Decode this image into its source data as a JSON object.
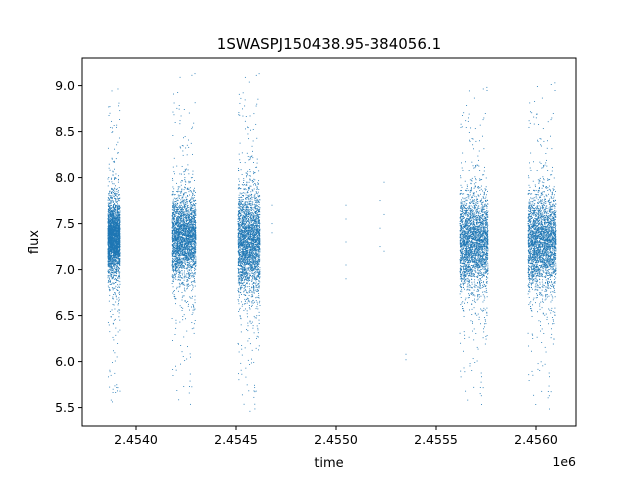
{
  "chart_data": {
    "type": "scatter",
    "title": "1SWASPJ150438.95-384056.1",
    "xlabel": "time",
    "ylabel": "flux",
    "x_offset_label": "1e6",
    "xlim": [
      2.45373,
      2.4562
    ],
    "ylim": [
      5.3,
      9.3
    ],
    "x_ticks": [
      2.454,
      2.4545,
      2.455,
      2.4555,
      2.456
    ],
    "x_tick_labels": [
      "2.4540",
      "2.4545",
      "2.4550",
      "2.4555",
      "2.4560"
    ],
    "y_ticks": [
      5.5,
      6.0,
      6.5,
      7.0,
      7.5,
      8.0,
      8.5,
      9.0
    ],
    "y_tick_labels": [
      "5.5",
      "6.0",
      "6.5",
      "7.0",
      "7.5",
      "8.0",
      "8.5",
      "9.0"
    ],
    "point_color": "#1f77b4",
    "grid": false,
    "legend": "none",
    "clusters": [
      {
        "x_start": 2.45386,
        "x_end": 2.45392,
        "y_center": 7.35,
        "y_core_halfwidth": 0.35,
        "y_min": 5.5,
        "y_max": 9.0
      },
      {
        "x_start": 2.45418,
        "x_end": 2.4543,
        "y_center": 7.35,
        "y_core_halfwidth": 0.4,
        "y_min": 5.5,
        "y_max": 9.15
      },
      {
        "x_start": 2.45451,
        "x_end": 2.45462,
        "y_center": 7.3,
        "y_core_halfwidth": 0.5,
        "y_min": 5.45,
        "y_max": 9.15
      },
      {
        "x_start": 2.45562,
        "x_end": 2.45576,
        "y_center": 7.3,
        "y_core_halfwidth": 0.45,
        "y_min": 5.5,
        "y_max": 9.0
      },
      {
        "x_start": 2.45596,
        "x_end": 2.4561,
        "y_center": 7.3,
        "y_core_halfwidth": 0.45,
        "y_min": 5.45,
        "y_max": 9.05
      }
    ],
    "sparse_points": [
      {
        "x": 2.45468,
        "y": 7.7
      },
      {
        "x": 2.45468,
        "y": 7.5
      },
      {
        "x": 2.45468,
        "y": 7.4
      },
      {
        "x": 2.45505,
        "y": 7.7
      },
      {
        "x": 2.45505,
        "y": 7.55
      },
      {
        "x": 2.45505,
        "y": 7.3
      },
      {
        "x": 2.45505,
        "y": 7.05
      },
      {
        "x": 2.45505,
        "y": 6.9
      },
      {
        "x": 2.45522,
        "y": 7.75
      },
      {
        "x": 2.45522,
        "y": 7.45
      },
      {
        "x": 2.45522,
        "y": 7.25
      },
      {
        "x": 2.45524,
        "y": 7.95
      },
      {
        "x": 2.45524,
        "y": 7.6
      },
      {
        "x": 2.45524,
        "y": 7.2
      },
      {
        "x": 2.45535,
        "y": 6.08
      },
      {
        "x": 2.45535,
        "y": 6.02
      }
    ]
  }
}
